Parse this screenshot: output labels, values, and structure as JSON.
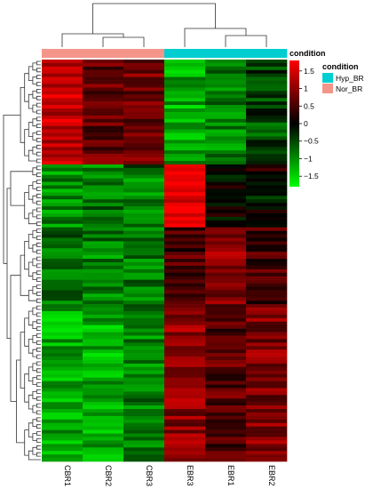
{
  "chart_data": {
    "type": "heatmap",
    "columns": [
      "CBR1",
      "CBR2",
      "CBR3",
      "EBR3",
      "EBR1",
      "EBR2"
    ],
    "column_annotation": {
      "title": "condition",
      "groups": [
        "Nor_BR",
        "Nor_BR",
        "Nor_BR",
        "Hyp_BR",
        "Hyp_BR",
        "Hyp_BR"
      ],
      "legend": [
        {
          "label": "Hyp_BR",
          "color": "#00CED1"
        },
        {
          "label": "Nor_BR",
          "color": "#F4958A"
        }
      ]
    },
    "colorbar": {
      "min": -1.8,
      "max": 1.8,
      "ticks": [
        1.5,
        1,
        0.5,
        0,
        -0.5,
        -1,
        -1.5
      ],
      "tick_labels": [
        "1.5",
        "1",
        "0.5",
        "0",
        "−0.5",
        "−1",
        "−1.5"
      ],
      "colors": {
        "high": "#FF0000",
        "mid": "#000000",
        "low": "#00FF00"
      }
    },
    "row_count": 115,
    "row_blocks": [
      {
        "rows": 30,
        "CBR1": 1.4,
        "CBR2": 0.7,
        "CBR3": 0.8,
        "EBR3": -1.2,
        "EBR1": -0.9,
        "EBR2": -0.5
      },
      {
        "rows": 4,
        "CBR1": -1.0,
        "CBR2": -0.9,
        "CBR3": -0.7,
        "EBR3": 1.6,
        "EBR1": -0.2,
        "EBR2": 0.3
      },
      {
        "rows": 14,
        "CBR1": -1.0,
        "CBR2": -0.8,
        "CBR3": -0.9,
        "EBR3": 1.7,
        "EBR1": 0.0,
        "EBR2": -0.1
      },
      {
        "rows": 22,
        "CBR1": -0.7,
        "CBR2": -0.9,
        "CBR3": -0.8,
        "EBR3": 0.5,
        "EBR1": 1.0,
        "EBR2": 0.5
      },
      {
        "rows": 45,
        "CBR1": -1.2,
        "CBR2": -1.2,
        "CBR3": -0.9,
        "EBR3": 1.0,
        "EBR1": 0.6,
        "EBR2": 0.9
      }
    ]
  }
}
